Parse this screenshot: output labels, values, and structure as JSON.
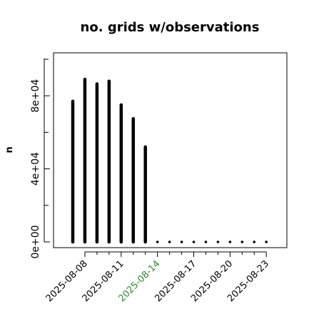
{
  "chart_data": {
    "type": "bar",
    "title": "no. grids w/observations",
    "ylabel": "n",
    "xlabel": "",
    "x": [
      "2025-08-07",
      "2025-08-08",
      "2025-08-09",
      "2025-08-10",
      "2025-08-11",
      "2025-08-12",
      "2025-08-13",
      "2025-08-14",
      "2025-08-15",
      "2025-08-16",
      "2025-08-17",
      "2025-08-18",
      "2025-08-19",
      "2025-08-20",
      "2025-08-21",
      "2025-08-22",
      "2025-08-23"
    ],
    "values": [
      77000,
      89000,
      86500,
      88000,
      75000,
      67500,
      52000,
      0,
      0,
      0,
      0,
      0,
      0,
      0,
      0,
      0,
      0
    ],
    "ylim": [
      -5000,
      102000
    ],
    "yticks": [
      0,
      40000,
      80000
    ],
    "ytick_labels": [
      "0e+00",
      "4e+04",
      "8e+04"
    ],
    "xticks": [
      "2025-08-08",
      "2025-08-11",
      "2025-08-14",
      "2025-08-17",
      "2025-08-20",
      "2025-08-23"
    ],
    "xtick_labels": [
      "2025-08-08",
      "2025-08-11",
      "2025-08-14",
      "2025-08-17",
      "2025-08-20",
      "2025-08-23"
    ],
    "highlight_tick": "2025-08-14",
    "colors": {
      "bars": "#000000",
      "highlight_tick": "#2e8b2e",
      "axis": "#000000"
    },
    "grid": false,
    "legend": "none"
  }
}
